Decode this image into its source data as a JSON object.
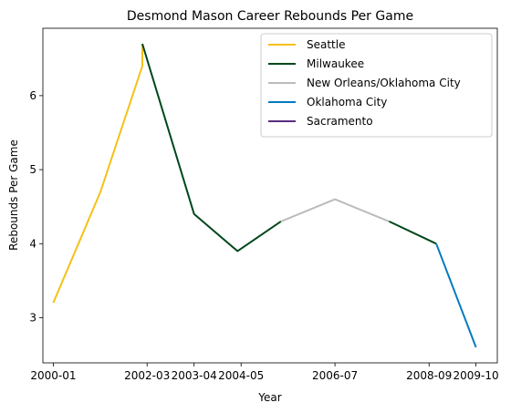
{
  "chart_data": {
    "type": "line",
    "title": "Desmond Mason Career Rebounds Per Game",
    "xlabel": "Year",
    "ylabel": "Rebounds Per Game",
    "x_ticks": [
      "2000-01",
      "2002-03",
      "2003-04",
      "2004-05",
      "2006-07",
      "2008-09",
      "2009-10"
    ],
    "y_ticks": [
      3,
      4,
      5,
      6
    ],
    "xlim": [
      "1999-10-05",
      "2010-03-30"
    ],
    "ylim": [
      2.39,
      6.91
    ],
    "legend_position": "top-right",
    "series": [
      {
        "name": "Seattle",
        "color": "#f5c118",
        "points": [
          [
            "2000-01-01",
            3.2
          ],
          [
            "2001-02-01",
            4.7
          ],
          [
            "2002-01-20",
            6.4
          ],
          [
            "2002-01-20",
            6.7
          ]
        ]
      },
      {
        "name": "Milwaukee",
        "color": "#00471b",
        "points": [
          [
            "2002-01-20",
            6.7
          ],
          [
            "2003-04-01",
            4.4
          ],
          [
            "2004-04-01",
            3.9
          ],
          [
            "2005-04-01",
            4.3
          ],
          [
            "2005-04-01",
            4.3
          ]
        ]
      },
      {
        "name": "New Orleans/Oklahoma City",
        "color": "#bbbbbb",
        "points": [
          [
            "2005-04-01",
            4.3
          ],
          [
            "2006-07-01",
            4.6
          ],
          [
            "2007-10-01",
            4.3
          ],
          [
            "2007-10-01",
            4.3
          ]
        ]
      },
      {
        "name": "Milwaukee",
        "color": "#00471b",
        "legend": false,
        "points": [
          [
            "2007-10-01",
            4.3
          ],
          [
            "2008-11-01",
            4.0
          ]
        ]
      },
      {
        "name": "Oklahoma City",
        "color": "#007ac1",
        "points": [
          [
            "2008-11-01",
            4.0
          ],
          [
            "2009-10-01",
            2.6
          ]
        ]
      },
      {
        "name": "Sacramento",
        "color": "#5a2d81",
        "points": []
      }
    ]
  }
}
